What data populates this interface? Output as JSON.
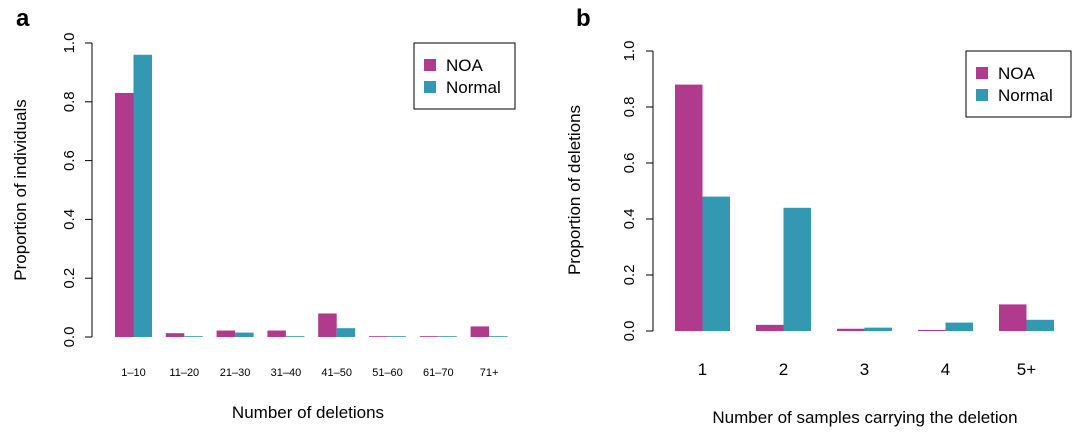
{
  "colors": {
    "noa": "#b03a8c",
    "normal": "#3598b3"
  },
  "chart_data": [
    {
      "panel": "a",
      "type": "bar",
      "categories": [
        "1–10",
        "11–20",
        "21–30",
        "31–40",
        "41–50",
        "51–60",
        "61–70",
        "71+"
      ],
      "series": [
        {
          "name": "NOA",
          "values": [
            0.83,
            0.013,
            0.022,
            0.022,
            0.08,
            0.0,
            0.0,
            0.036
          ]
        },
        {
          "name": "Normal",
          "values": [
            0.96,
            0.0,
            0.015,
            0.0,
            0.03,
            0.0,
            0.0,
            0.0
          ]
        }
      ],
      "xlabel": "Number of deletions",
      "ylabel": "Proportion of individuals",
      "ylim": [
        0,
        1.0
      ],
      "yticks": [
        "0.0",
        "0.2",
        "0.4",
        "0.6",
        "0.8",
        "1.0"
      ],
      "legend": [
        "NOA",
        "Normal"
      ],
      "legend_position": "top-right",
      "grid": false
    },
    {
      "panel": "b",
      "type": "bar",
      "categories": [
        "1",
        "2",
        "3",
        "4",
        "5+"
      ],
      "series": [
        {
          "name": "NOA",
          "values": [
            0.88,
            0.022,
            0.008,
            0.004,
            0.095
          ]
        },
        {
          "name": "Normal",
          "values": [
            0.48,
            0.44,
            0.012,
            0.03,
            0.04
          ]
        }
      ],
      "xlabel": "Number of samples carrying the deletion",
      "ylabel": "Proportion of deletions",
      "ylim": [
        0,
        1.0
      ],
      "yticks": [
        "0.0",
        "0.2",
        "0.4",
        "0.6",
        "0.8",
        "1.0"
      ],
      "legend": [
        "NOA",
        "Normal"
      ],
      "legend_position": "top-right",
      "grid": false
    }
  ]
}
